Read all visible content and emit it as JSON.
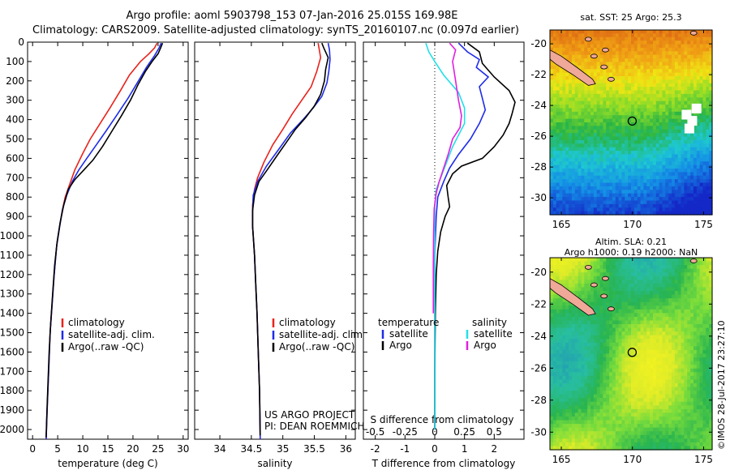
{
  "header": {
    "line1": "Argo profile: aoml 5903798_153 07-Jan-2016 25.015S 169.98E",
    "line2": "Climatology: CARS2009. Satellite-adjusted climatology: synTS_20160107.nc (0.097d earlier)"
  },
  "colors": {
    "climatology": "#e8231c",
    "satellite": "#1e2be8",
    "argo": "#000000",
    "s_satellite": "#22e0e8",
    "s_argo": "#e020e0"
  },
  "chart_data": [
    {
      "type": "line",
      "id": "temperature",
      "xlabel": "temperature (deg C)",
      "xlim": [
        -1,
        31
      ],
      "xticks": [
        0,
        5,
        10,
        15,
        20,
        25,
        30
      ],
      "ylim": [
        2050,
        0
      ],
      "yticks": [
        0,
        100,
        200,
        300,
        400,
        500,
        600,
        700,
        800,
        900,
        1000,
        1100,
        1200,
        1300,
        1400,
        1500,
        1600,
        1700,
        1800,
        1900,
        2000
      ],
      "legend": [
        "climatology",
        "satellite-adj. clim.",
        "Argo(..raw -QC)"
      ],
      "series": [
        {
          "name": "climatology",
          "points": [
            [
              24.8,
              5
            ],
            [
              24.3,
              30
            ],
            [
              23.2,
              60
            ],
            [
              21.5,
              100
            ],
            [
              19.3,
              170
            ],
            [
              17.5,
              250
            ],
            [
              15.4,
              340
            ],
            [
              13.2,
              430
            ],
            [
              11.5,
              500
            ],
            [
              9.9,
              580
            ],
            [
              8.4,
              660
            ],
            [
              7.3,
              740
            ],
            [
              6.5,
              800
            ],
            [
              5.9,
              870
            ],
            [
              5.4,
              950
            ],
            [
              4.8,
              1050
            ],
            [
              4.3,
              1200
            ],
            [
              3.9,
              1350
            ],
            [
              3.5,
              1500
            ],
            [
              3.2,
              1700
            ],
            [
              2.9,
              1900
            ],
            [
              2.7,
              2050
            ]
          ]
        },
        {
          "name": "satellite-adj. clim.",
          "points": [
            [
              25.6,
              5
            ],
            [
              25.2,
              30
            ],
            [
              24.3,
              70
            ],
            [
              22.7,
              130
            ],
            [
              21.1,
              200
            ],
            [
              19.0,
              290
            ],
            [
              16.7,
              380
            ],
            [
              14.6,
              460
            ],
            [
              12.7,
              530
            ],
            [
              10.8,
              600
            ],
            [
              9.2,
              660
            ],
            [
              7.9,
              720
            ],
            [
              6.8,
              790
            ],
            [
              6.0,
              860
            ],
            [
              5.4,
              950
            ],
            [
              4.8,
              1050
            ],
            [
              4.3,
              1200
            ],
            [
              3.9,
              1350
            ],
            [
              3.5,
              1500
            ],
            [
              3.2,
              1700
            ],
            [
              2.9,
              1900
            ],
            [
              2.7,
              2050
            ]
          ]
        },
        {
          "name": "Argo(..raw -QC)",
          "points": [
            [
              25.9,
              5
            ],
            [
              25.5,
              30
            ],
            [
              25.0,
              60
            ],
            [
              23.8,
              100
            ],
            [
              22.5,
              150
            ],
            [
              21.0,
              220
            ],
            [
              19.5,
              300
            ],
            [
              17.7,
              380
            ],
            [
              15.8,
              460
            ],
            [
              13.9,
              540
            ],
            [
              12.0,
              610
            ],
            [
              10.2,
              660
            ],
            [
              8.4,
              710
            ],
            [
              7.1,
              760
            ],
            [
              6.2,
              840
            ],
            [
              5.5,
              930
            ],
            [
              4.9,
              1030
            ],
            [
              4.4,
              1150
            ],
            [
              4.0,
              1300
            ],
            [
              3.6,
              1450
            ],
            [
              3.3,
              1600
            ],
            [
              3.0,
              1800
            ],
            [
              2.8,
              1950
            ],
            [
              2.7,
              2040
            ]
          ]
        }
      ]
    },
    {
      "type": "line",
      "id": "salinity",
      "xlabel": "salinity",
      "xlim": [
        33.6,
        36.15
      ],
      "xticks": [
        34,
        34.5,
        35,
        35.5,
        36
      ],
      "xtick_labels": [
        "34",
        "34.5",
        "35",
        "35.5",
        "36"
      ],
      "ylim": [
        2050,
        0
      ],
      "legend": [
        "climatology",
        "satellite-adj. clim.",
        "Argo(..raw -QC)"
      ],
      "series": [
        {
          "name": "climatology",
          "points": [
            [
              35.56,
              5
            ],
            [
              35.58,
              40
            ],
            [
              35.6,
              80
            ],
            [
              35.54,
              150
            ],
            [
              35.45,
              230
            ],
            [
              35.3,
              300
            ],
            [
              35.15,
              370
            ],
            [
              35.0,
              450
            ],
            [
              34.84,
              530
            ],
            [
              34.7,
              620
            ],
            [
              34.6,
              700
            ],
            [
              34.55,
              760
            ],
            [
              34.52,
              840
            ],
            [
              34.52,
              950
            ],
            [
              34.55,
              1100
            ],
            [
              34.57,
              1250
            ],
            [
              34.59,
              1400
            ],
            [
              34.61,
              1600
            ],
            [
              34.63,
              1800
            ],
            [
              34.64,
              2050
            ]
          ]
        },
        {
          "name": "satellite-adj. clim.",
          "points": [
            [
              35.72,
              5
            ],
            [
              35.74,
              40
            ],
            [
              35.75,
              90
            ],
            [
              35.73,
              150
            ],
            [
              35.7,
              210
            ],
            [
              35.62,
              280
            ],
            [
              35.48,
              340
            ],
            [
              35.32,
              400
            ],
            [
              35.12,
              470
            ],
            [
              34.92,
              560
            ],
            [
              34.74,
              640
            ],
            [
              34.6,
              720
            ],
            [
              34.53,
              790
            ],
            [
              34.52,
              880
            ],
            [
              34.52,
              950
            ],
            [
              34.55,
              1100
            ],
            [
              34.57,
              1250
            ],
            [
              34.59,
              1400
            ],
            [
              34.61,
              1600
            ],
            [
              34.63,
              1800
            ],
            [
              34.64,
              2050
            ]
          ]
        },
        {
          "name": "Argo(..raw -QC)",
          "points": [
            [
              35.62,
              5
            ],
            [
              35.65,
              30
            ],
            [
              35.72,
              80
            ],
            [
              35.68,
              140
            ],
            [
              35.66,
              200
            ],
            [
              35.6,
              270
            ],
            [
              35.5,
              330
            ],
            [
              35.36,
              390
            ],
            [
              35.2,
              450
            ],
            [
              35.05,
              520
            ],
            [
              34.9,
              590
            ],
            [
              34.75,
              660
            ],
            [
              34.62,
              720
            ],
            [
              34.55,
              790
            ],
            [
              34.52,
              870
            ],
            [
              34.52,
              950
            ],
            [
              34.55,
              1100
            ],
            [
              34.57,
              1250
            ],
            [
              34.59,
              1400
            ],
            [
              34.61,
              1600
            ],
            [
              34.63,
              1800
            ],
            [
              34.64,
              2030
            ]
          ]
        }
      ]
    },
    {
      "type": "line",
      "id": "difference",
      "xlabel": "T difference from climatology",
      "xlabel2": "S difference from climatology",
      "xlim": [
        -2.4,
        3.0
      ],
      "xticks": [
        -2,
        -1,
        0,
        1,
        2
      ],
      "xtick_labels": [
        "-2",
        "-1",
        "0",
        "1",
        "2"
      ],
      "xticks2_values": [
        -2,
        -1,
        0,
        1,
        2
      ],
      "xticks2_labels": [
        "-0.5",
        "-0.25",
        "0",
        "0.25",
        "0.5"
      ],
      "ylim": [
        2050,
        0
      ],
      "legend_headers": [
        "temperature",
        "salinity"
      ],
      "legend": [
        {
          "name": "satellite",
          "color_key": "satellite"
        },
        {
          "name": "Argo",
          "color_key": "argo"
        },
        {
          "name": "satellite",
          "color_key": "s_satellite"
        },
        {
          "name": "Argo",
          "color_key": "s_argo"
        }
      ],
      "series": [
        {
          "name": "T satellite",
          "color_key": "satellite",
          "points": [
            [
              0.8,
              5
            ],
            [
              1.1,
              50
            ],
            [
              1.5,
              90
            ],
            [
              1.4,
              130
            ],
            [
              1.8,
              180
            ],
            [
              1.5,
              230
            ],
            [
              1.6,
              290
            ],
            [
              1.7,
              350
            ],
            [
              1.5,
              420
            ],
            [
              1.2,
              500
            ],
            [
              0.8,
              580
            ],
            [
              0.5,
              650
            ],
            [
              0.3,
              720
            ],
            [
              0.1,
              800
            ],
            [
              0.05,
              900
            ],
            [
              0.0,
              1100
            ],
            [
              0.0,
              1400
            ],
            [
              0.0,
              1700
            ],
            [
              0.0,
              2000
            ]
          ]
        },
        {
          "name": "T Argo",
          "color_key": "argo",
          "points": [
            [
              1.1,
              5
            ],
            [
              1.5,
              50
            ],
            [
              1.6,
              110
            ],
            [
              2.0,
              180
            ],
            [
              2.5,
              250
            ],
            [
              2.7,
              310
            ],
            [
              2.6,
              370
            ],
            [
              2.5,
              420
            ],
            [
              2.3,
              480
            ],
            [
              2.0,
              540
            ],
            [
              1.6,
              600
            ],
            [
              0.9,
              640
            ],
            [
              0.6,
              680
            ],
            [
              0.4,
              740
            ],
            [
              0.45,
              800
            ],
            [
              0.5,
              850
            ],
            [
              0.35,
              900
            ],
            [
              0.2,
              980
            ],
            [
              0.1,
              1080
            ],
            [
              0.05,
              1200
            ],
            [
              0.02,
              1400
            ],
            [
              0.0,
              1700
            ],
            [
              0.0,
              2000
            ]
          ]
        },
        {
          "name": "S satellite",
          "color_key": "s_satellite",
          "points": [
            [
              -0.3,
              5
            ],
            [
              -0.2,
              50
            ],
            [
              0.0,
              100
            ],
            [
              0.3,
              170
            ],
            [
              0.8,
              260
            ],
            [
              1.0,
              340
            ],
            [
              1.0,
              420
            ],
            [
              0.8,
              480
            ],
            [
              0.6,
              540
            ],
            [
              0.4,
              620
            ],
            [
              0.2,
              700
            ],
            [
              0.05,
              760
            ],
            [
              0.0,
              850
            ],
            [
              0.0,
              1000
            ],
            [
              0.0,
              1200
            ],
            [
              0.0,
              1500
            ],
            [
              0.0,
              1700
            ],
            [
              0.0,
              2000
            ]
          ]
        },
        {
          "name": "S Argo",
          "color_key": "s_argo",
          "points": [
            [
              0.5,
              5
            ],
            [
              0.7,
              40
            ],
            [
              0.6,
              100
            ],
            [
              0.7,
              200
            ],
            [
              0.8,
              300
            ],
            [
              0.9,
              380
            ],
            [
              0.85,
              440
            ],
            [
              0.6,
              500
            ],
            [
              0.45,
              580
            ],
            [
              0.3,
              650
            ],
            [
              0.15,
              720
            ],
            [
              0.05,
              780
            ],
            [
              -0.02,
              860
            ],
            [
              -0.04,
              1000
            ],
            [
              -0.05,
              1150
            ],
            [
              -0.05,
              1300
            ],
            [
              -0.05,
              1400
            ]
          ]
        }
      ]
    },
    {
      "type": "heatmap",
      "id": "sst_map",
      "title": "sat. SST: 25 Argo: 25.3",
      "xlim": [
        164.2,
        175.6
      ],
      "ylim": [
        -31.1,
        -19.1
      ],
      "xticks": [
        165,
        170,
        175
      ],
      "yticks": [
        -20,
        -22,
        -24,
        -26,
        -28,
        -30
      ],
      "marker": [
        169.98,
        -25.015
      ]
    },
    {
      "type": "heatmap",
      "id": "sla_map",
      "title": "Altim. SLA: 0.21",
      "subtitle": "Argo h1000: 0.19 h2000: NaN",
      "xlim": [
        164.2,
        175.6
      ],
      "ylim": [
        -31.1,
        -19.1
      ],
      "xticks": [
        165,
        170,
        175
      ],
      "yticks": [
        -20,
        -22,
        -24,
        -26,
        -28,
        -30
      ],
      "marker": [
        169.98,
        -25.015
      ]
    }
  ],
  "annotations": {
    "project_line1": "US ARGO PROJECT",
    "project_line2": "PI: DEAN ROEMMICH",
    "credit": "©IMOS 28-Jul-2017 23:27:10"
  }
}
